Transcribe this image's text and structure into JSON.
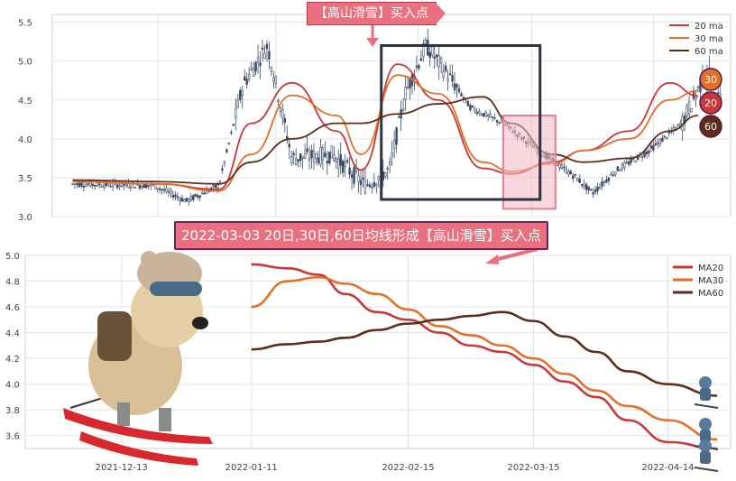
{
  "banner_top": "【高山滑雪】买入点",
  "banner_mid": "2022-03-03 20日,30日,60日均线形成【高山滑雪】买入点",
  "badges": [
    "30",
    "20",
    "60"
  ],
  "colors": {
    "ma20": "#c8373a",
    "ma30": "#e0702a",
    "ma60": "#5a2e1a",
    "candle": "#3a4a66",
    "highlight": "#f4b6c2",
    "banner": "#e9707f",
    "box": "#2d3340"
  },
  "chart_data": [
    {
      "type": "line",
      "panel": "top",
      "legend": [
        "20 ma",
        "30 ma",
        "60 ma"
      ],
      "legend_position": "top-right",
      "ylim": [
        3.0,
        5.6
      ],
      "yticks": [
        "3.0",
        "3.5",
        "4.0",
        "4.5",
        "5.0",
        "5.5"
      ],
      "grid": true,
      "series": [
        {
          "name": "20 ma",
          "dates": [
            "2021-11-22",
            "2021-12-13",
            "2021-12-28",
            "2022-01-05",
            "2022-01-15",
            "2022-01-26",
            "2022-02-01",
            "2022-02-10",
            "2022-02-20",
            "2022-03-03",
            "2022-03-10",
            "2022-03-20",
            "2022-03-28",
            "2022-04-08",
            "2022-04-18",
            "2022-04-25"
          ],
          "values": [
            3.45,
            3.42,
            3.35,
            4.2,
            4.72,
            4.1,
            3.6,
            4.96,
            4.5,
            3.62,
            3.55,
            3.7,
            3.85,
            4.1,
            4.72,
            4.55
          ]
        },
        {
          "name": "30 ma",
          "dates": [
            "2021-11-22",
            "2021-12-13",
            "2021-12-28",
            "2022-01-05",
            "2022-01-15",
            "2022-01-26",
            "2022-02-01",
            "2022-02-10",
            "2022-02-20",
            "2022-03-03",
            "2022-03-10",
            "2022-03-20",
            "2022-03-28",
            "2022-04-08",
            "2022-04-18",
            "2022-04-25"
          ],
          "values": [
            3.45,
            3.42,
            3.33,
            3.8,
            4.56,
            4.3,
            3.8,
            4.82,
            4.58,
            3.7,
            3.58,
            3.68,
            3.85,
            4.0,
            4.5,
            4.62
          ]
        },
        {
          "name": "60 ma",
          "dates": [
            "2021-11-22",
            "2021-12-13",
            "2021-12-28",
            "2022-01-05",
            "2022-01-15",
            "2022-01-26",
            "2022-02-01",
            "2022-02-10",
            "2022-02-20",
            "2022-03-03",
            "2022-03-10",
            "2022-03-20",
            "2022-03-28",
            "2022-04-08",
            "2022-04-18",
            "2022-04-25"
          ],
          "values": [
            3.47,
            3.45,
            3.42,
            3.7,
            4.0,
            4.2,
            4.2,
            4.32,
            4.45,
            4.54,
            4.2,
            3.8,
            3.7,
            3.75,
            4.1,
            4.3
          ]
        }
      ]
    },
    {
      "type": "line",
      "panel": "bottom",
      "legend": [
        "MA20",
        "MA30",
        "MA60"
      ],
      "legend_position": "top-right",
      "ylim": [
        3.5,
        5.0
      ],
      "yticks": [
        "3.6",
        "3.8",
        "4.0",
        "4.2",
        "4.4",
        "4.6",
        "4.8",
        "5.0"
      ],
      "xticks": [
        "2021-12-13",
        "2022-01-11",
        "2022-02-15",
        "2022-03-15",
        "2022-04-14"
      ],
      "grid": true,
      "series": [
        {
          "name": "MA20",
          "dates": [
            "2022-01-11",
            "2022-01-19",
            "2022-01-26",
            "2022-02-01",
            "2022-02-08",
            "2022-02-15",
            "2022-02-22",
            "2022-03-01",
            "2022-03-08",
            "2022-03-15",
            "2022-03-22",
            "2022-03-29",
            "2022-04-05",
            "2022-04-14",
            "2022-04-25"
          ],
          "values": [
            4.93,
            4.9,
            4.85,
            4.7,
            4.56,
            4.5,
            4.4,
            4.3,
            4.25,
            4.15,
            4.02,
            3.9,
            3.72,
            3.55,
            3.5
          ]
        },
        {
          "name": "MA30",
          "dates": [
            "2022-01-11",
            "2022-01-19",
            "2022-01-26",
            "2022-02-01",
            "2022-02-08",
            "2022-02-15",
            "2022-02-22",
            "2022-03-01",
            "2022-03-08",
            "2022-03-15",
            "2022-03-22",
            "2022-03-29",
            "2022-04-05",
            "2022-04-14",
            "2022-04-25"
          ],
          "values": [
            4.6,
            4.8,
            4.83,
            4.78,
            4.7,
            4.58,
            4.45,
            4.38,
            4.3,
            4.2,
            4.08,
            3.95,
            3.83,
            3.72,
            3.57
          ]
        },
        {
          "name": "MA60",
          "dates": [
            "2022-01-11",
            "2022-01-19",
            "2022-01-26",
            "2022-02-01",
            "2022-02-08",
            "2022-02-15",
            "2022-02-22",
            "2022-03-01",
            "2022-03-08",
            "2022-03-15",
            "2022-03-22",
            "2022-03-29",
            "2022-04-05",
            "2022-04-14",
            "2022-04-25"
          ],
          "values": [
            4.27,
            4.31,
            4.33,
            4.36,
            4.42,
            4.47,
            4.5,
            4.53,
            4.56,
            4.49,
            4.37,
            4.25,
            4.1,
            4.0,
            3.91
          ]
        }
      ]
    }
  ]
}
